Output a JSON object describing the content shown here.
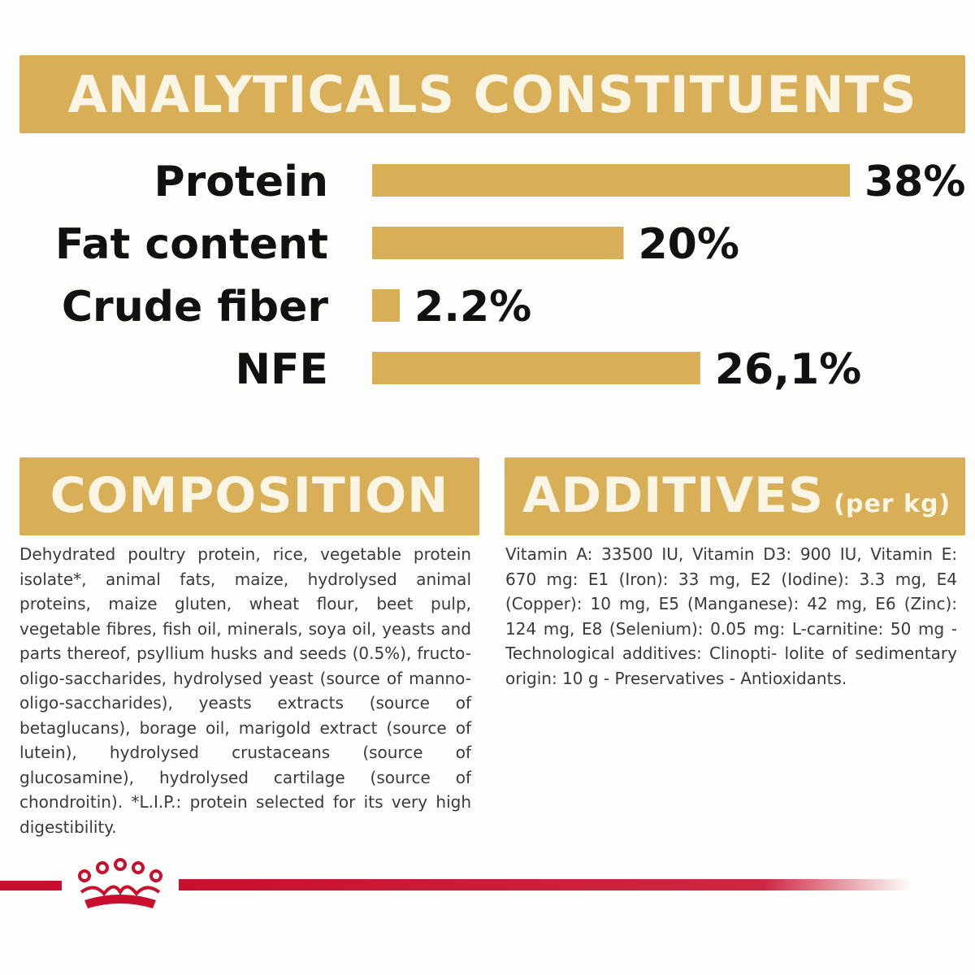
{
  "analytical": {
    "title": "ANALYTICALS CONSTITUENTS"
  },
  "chart_data": {
    "type": "bar",
    "orientation": "horizontal",
    "categories": [
      "Protein",
      "Fat content",
      "Crude fiber",
      "NFE"
    ],
    "values": [
      38,
      20,
      2.2,
      26.1
    ],
    "value_labels": [
      "38%",
      "20%",
      "2.2%",
      "26,1%"
    ],
    "unit": "%",
    "xlim": [
      0,
      38
    ],
    "grid": false,
    "legend": "none",
    "bar_color": "#d8ae57"
  },
  "composition": {
    "title": "COMPOSITION",
    "text": "Dehydrated poultry protein, rice, vegetable protein isolate*, animal fats, maize, hydrolysed animal proteins, maize gluten, wheat flour, beet pulp, vegetable fibres, fish oil, minerals, soya oil, yeasts and parts thereof, psyllium husks and seeds (0.5%), fructo-oligo-saccharides, hydrolysed yeast (source of manno- oligo-saccharides), yeasts extracts (source of betaglucans), borage oil, marigold extract (source of lutein), hydrolysed crustaceans (source of glucosamine), hydrolysed cartilage (source of chondroitin). *L.I.P.: protein selected for its very high digestibility."
  },
  "additives": {
    "title": "ADDITIVES",
    "subtitle": "(per kg)",
    "text": "Vitamin A: 33500 IU, Vitamin D3: 900 IU, Vitamin E: 670 mg: E1 (Iron): 33 mg, E2 (Iodine): 3.3 mg, E4 (Copper): 10 mg, E5 (Manganese): 42 mg, E6 (Zinc): 124 mg, E8 (Selenium): 0.05 mg: L-carnitine: 50 mg - Technological additives: Clinopti- lolite of sedimentary origin: 10 g - Preservatives - Antioxidants."
  },
  "colors": {
    "banner": "#d8ae57",
    "banner_text": "#fbf5e6",
    "footer_red": "#c8102e"
  },
  "footer": {
    "logo_icon": "crown-icon"
  }
}
